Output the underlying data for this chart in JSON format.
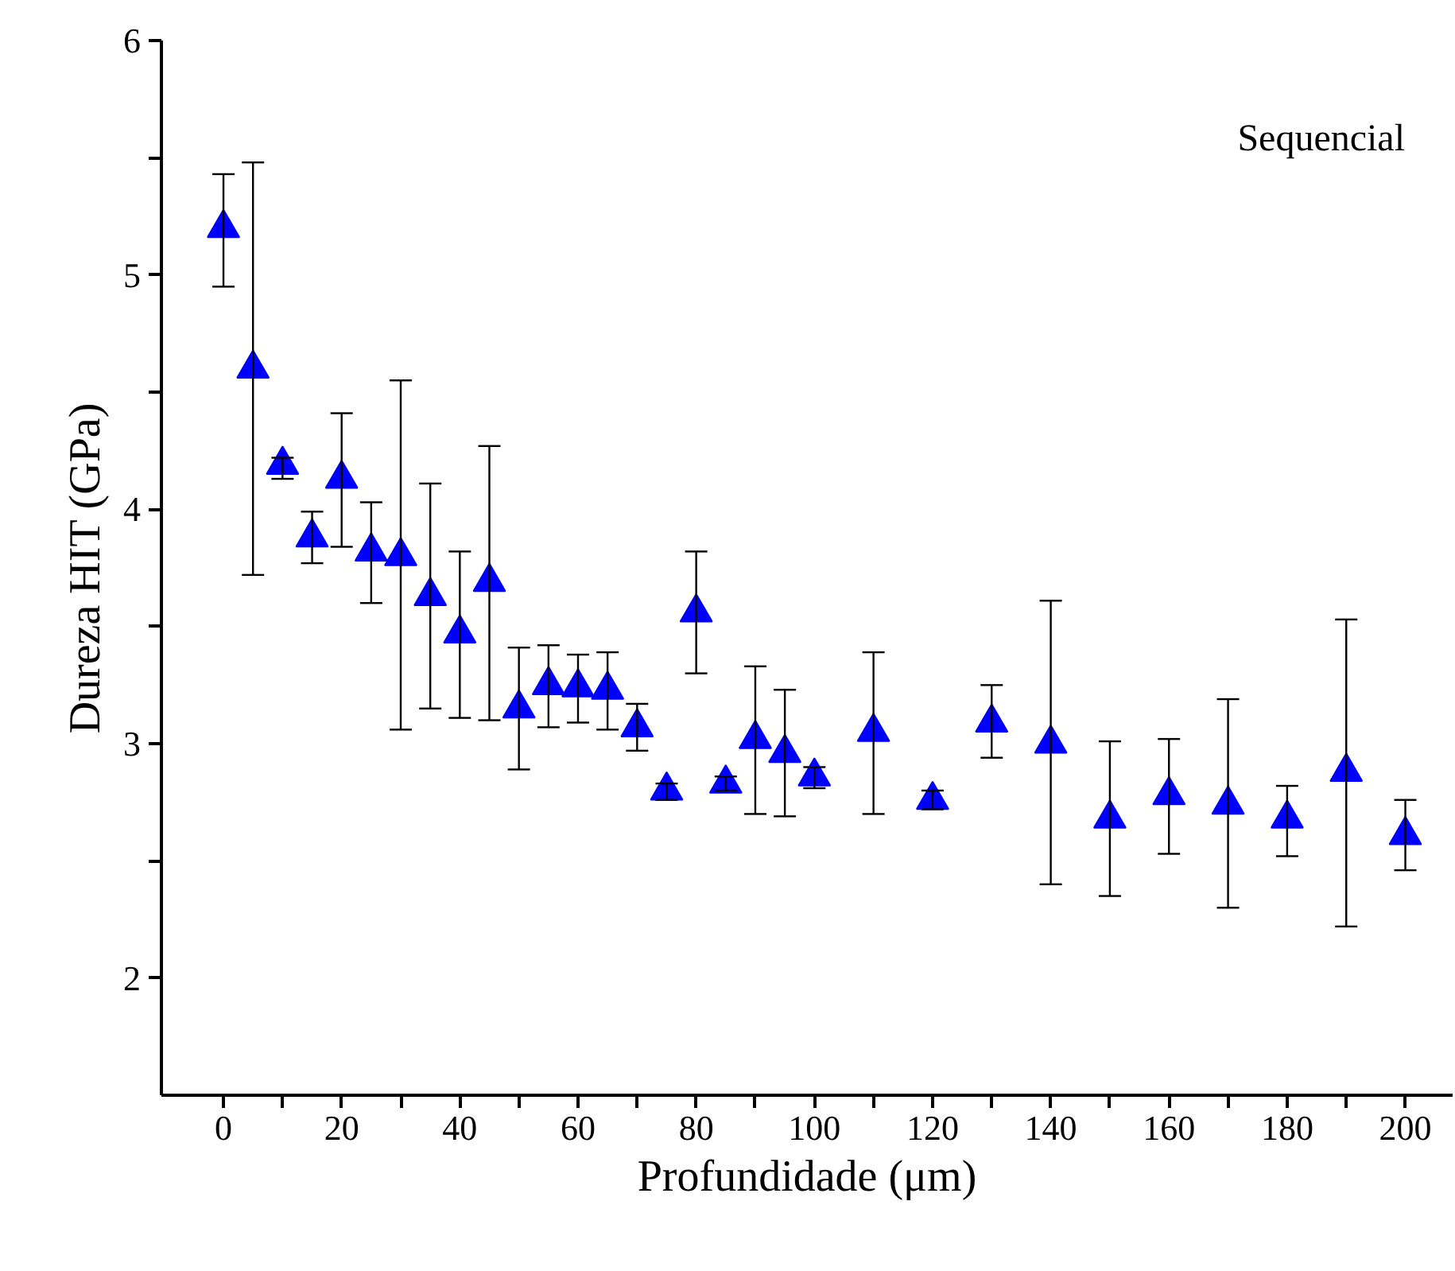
{
  "chart_data": {
    "type": "scatter",
    "xlabel": "Profundidade (μm)",
    "ylabel": "Dureza HIT (GPa)",
    "annotations": [
      "Sequencial"
    ],
    "x": [
      0,
      5,
      10,
      15,
      20,
      25,
      30,
      35,
      40,
      45,
      50,
      55,
      60,
      65,
      70,
      75,
      80,
      85,
      90,
      95,
      100,
      110,
      120,
      130,
      140,
      150,
      160,
      170,
      180,
      190,
      200
    ],
    "series": [
      {
        "color": "#0000ff",
        "values": [
          5.2,
          4.6,
          4.19,
          3.88,
          4.13,
          3.82,
          3.8,
          3.63,
          3.47,
          3.69,
          3.15,
          3.25,
          3.24,
          3.23,
          3.07,
          2.8,
          3.56,
          2.83,
          3.02,
          2.96,
          2.86,
          3.05,
          2.76,
          3.09,
          3.0,
          2.68,
          2.78,
          2.74,
          2.68,
          2.88,
          2.61
        ],
        "errors": [
          [
            4.95,
            5.43
          ],
          [
            3.72,
            5.48
          ],
          [
            4.13,
            4.22
          ],
          [
            3.77,
            3.99
          ],
          [
            3.84,
            4.41
          ],
          [
            3.6,
            4.03
          ],
          [
            3.06,
            4.55
          ],
          [
            3.15,
            4.11
          ],
          [
            3.11,
            3.82
          ],
          [
            3.1,
            4.27
          ],
          [
            2.89,
            3.41
          ],
          [
            3.07,
            3.42
          ],
          [
            3.09,
            3.38
          ],
          [
            3.06,
            3.39
          ],
          [
            2.97,
            3.17
          ],
          [
            2.76,
            2.83
          ],
          [
            3.3,
            3.82
          ],
          [
            2.8,
            2.86
          ],
          [
            2.7,
            3.33
          ],
          [
            2.69,
            3.23
          ],
          [
            2.81,
            2.9
          ],
          [
            2.7,
            3.39
          ],
          [
            2.72,
            2.8
          ],
          [
            2.94,
            3.25
          ],
          [
            2.4,
            3.61
          ],
          [
            2.35,
            3.01
          ],
          [
            2.53,
            3.02
          ],
          [
            2.3,
            3.19
          ],
          [
            2.52,
            2.82
          ],
          [
            2.22,
            3.53
          ],
          [
            2.46,
            2.76
          ]
        ]
      }
    ],
    "xlim": [
      -10.5,
      208
    ],
    "ylim": [
      1.5,
      6
    ],
    "xticks": [
      0,
      {
        "value": 10,
        "label": null
      },
      20,
      {
        "value": 30,
        "label": null
      },
      40,
      {
        "value": 50,
        "label": null
      },
      60,
      {
        "value": 70,
        "label": null
      },
      80,
      {
        "value": 90,
        "label": null
      },
      100,
      {
        "value": 110,
        "label": null
      },
      120,
      {
        "value": 130,
        "label": null
      },
      140,
      {
        "value": 150,
        "label": null
      },
      160,
      {
        "value": 170,
        "label": null
      },
      180,
      {
        "value": 190,
        "label": null
      },
      200
    ],
    "yticks": [
      2,
      {
        "value": 2.5,
        "label": null
      },
      3,
      {
        "value": 3.5,
        "label": null
      },
      4,
      {
        "value": 4.5,
        "label": null
      },
      5,
      {
        "value": 5.5,
        "label": null
      },
      6
    ],
    "grid": false,
    "marker": "triangle"
  }
}
